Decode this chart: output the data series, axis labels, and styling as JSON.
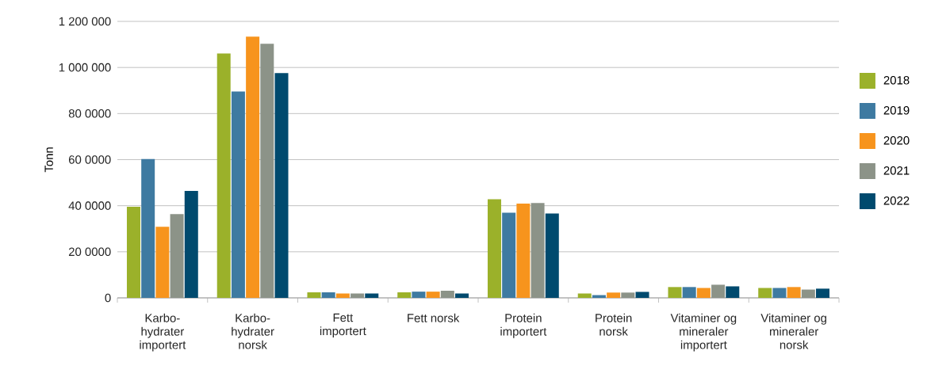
{
  "chart_data": {
    "type": "bar",
    "ylabel": "Tonn",
    "categories": [
      "Karbo-hydrater importert",
      "Karbo-hydrater norsk",
      "Fett importert",
      "Fett norsk",
      "Protein importert",
      "Protein norsk",
      "Vitaminer og mineraler importert",
      "Vitaminer og mineraler norsk"
    ],
    "series": [
      {
        "name": "2018",
        "color": "#9bb12a",
        "values": [
          395000,
          1061000,
          24000,
          24000,
          428000,
          19000,
          47000,
          43000
        ]
      },
      {
        "name": "2019",
        "color": "#3e7aa1",
        "values": [
          603000,
          896000,
          24000,
          27000,
          370000,
          12000,
          47000,
          43000
        ]
      },
      {
        "name": "2020",
        "color": "#f7941d",
        "values": [
          309000,
          1134000,
          19000,
          27000,
          409000,
          23000,
          43000,
          47000
        ]
      },
      {
        "name": "2021",
        "color": "#8c9388",
        "values": [
          364000,
          1103000,
          19000,
          31000,
          412000,
          23000,
          57000,
          36000
        ]
      },
      {
        "name": "2022",
        "color": "#004a6e",
        "values": [
          464000,
          976000,
          19000,
          19000,
          366000,
          26000,
          50000,
          40000
        ]
      }
    ],
    "ylim": [
      0,
      1200000
    ],
    "yticks": [
      0,
      {
        "value": 200000,
        "label": "20 0000"
      },
      {
        "value": 400000,
        "label": "40 0000"
      },
      {
        "value": 600000,
        "label": "60 0000"
      },
      {
        "value": 800000,
        "label": "80 0000"
      },
      {
        "value": 1000000,
        "label": "1 000 000"
      },
      {
        "value": 1200000,
        "label": "1 200 000"
      }
    ],
    "grid": "y",
    "legend": "right"
  }
}
